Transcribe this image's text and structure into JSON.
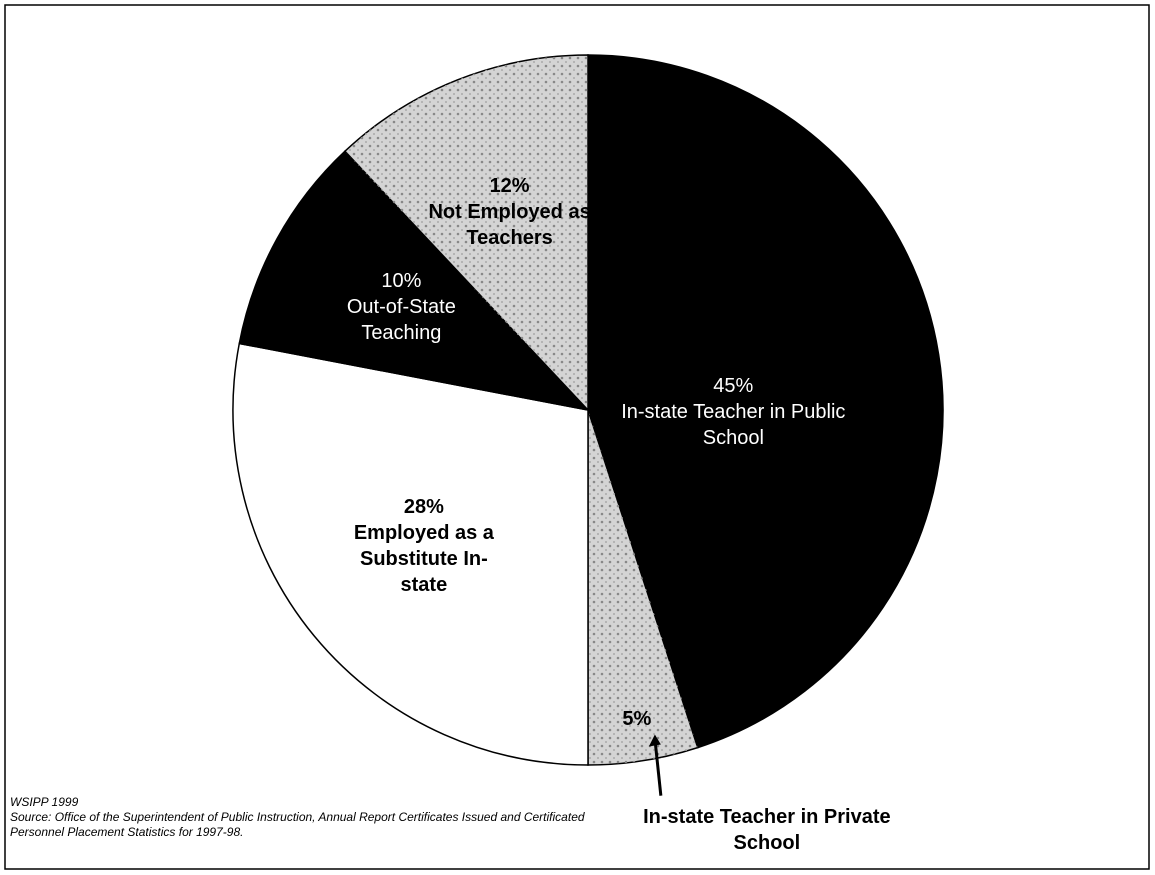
{
  "chart_data": {
    "type": "pie",
    "categories": [
      "In-state Teacher in Public School",
      "In-state Teacher in Private School",
      "Employed as a Substitute In-state",
      "Out-of-State Teaching",
      "Not Employed as Teachers"
    ],
    "values": [
      45,
      5,
      28,
      10,
      12
    ],
    "value_labels": [
      "45%",
      "5%",
      "28%",
      "10%",
      "12%"
    ],
    "colors": [
      "#000000",
      "#d4d4d4",
      "#ffffff",
      "#000000",
      "#d4d4d4"
    ],
    "credit": "WSIPP 1999",
    "source": "Source:  Office of the Superintendent of Public Instruction, Annual Report Certificates Issued and Certificated Personnel Placement Statistics for 1997-98."
  }
}
